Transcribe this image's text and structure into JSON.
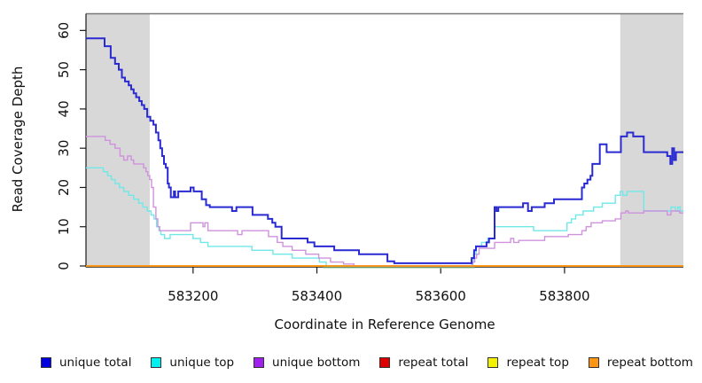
{
  "chart_data": {
    "type": "line",
    "line_style": "step",
    "title": "",
    "xlabel": "Coordinate in Reference Genome",
    "ylabel": "Read Coverage Depth",
    "xlim": [
      583027,
      583992
    ],
    "ylim": [
      0,
      64
    ],
    "x_tick_values": [
      583200,
      583400,
      583600,
      583800
    ],
    "x_tick_labels": [
      "583200",
      "583400",
      "583600",
      "583800"
    ],
    "y_tick_values": [
      0,
      10,
      20,
      30,
      40,
      50,
      60
    ],
    "y_tick_labels": [
      "0",
      "10",
      "20",
      "30",
      "40",
      "50",
      "60"
    ],
    "grid": false,
    "legend_position": "bottom",
    "background_color": "#ffffff",
    "shaded_region_color": "#d8d8d8",
    "shaded_regions": [
      {
        "x0": 583027,
        "x1": 583130
      },
      {
        "x0": 583890,
        "x1": 583992
      }
    ],
    "overlap_artifact": {
      "x0": 583410,
      "x1": 583655,
      "depth": 0,
      "color": "#9cd69c"
    },
    "series": [
      {
        "label": "unique total",
        "line_color": "#2a2ad2",
        "legend_color": "#0000e0",
        "line_width": 2,
        "points": [
          [
            583027,
            58
          ],
          [
            583057,
            56
          ],
          [
            583067,
            53
          ],
          [
            583074,
            51.5
          ],
          [
            583080,
            50
          ],
          [
            583085,
            48
          ],
          [
            583090,
            47
          ],
          [
            583096,
            46
          ],
          [
            583100,
            45
          ],
          [
            583104,
            44
          ],
          [
            583108,
            43
          ],
          [
            583113,
            42
          ],
          [
            583117,
            41
          ],
          [
            583121,
            40
          ],
          [
            583126,
            38
          ],
          [
            583131,
            37
          ],
          [
            583136,
            36
          ],
          [
            583140,
            34
          ],
          [
            583144,
            32
          ],
          [
            583147,
            30
          ],
          [
            583150,
            28
          ],
          [
            583153,
            26
          ],
          [
            583156,
            25
          ],
          [
            583159,
            21
          ],
          [
            583161,
            20
          ],
          [
            583164,
            17.5
          ],
          [
            583169,
            19
          ],
          [
            583171,
            17.5
          ],
          [
            583176,
            19
          ],
          [
            583196,
            20
          ],
          [
            583201,
            19
          ],
          [
            583214,
            17
          ],
          [
            583221,
            15.5
          ],
          [
            583227,
            15
          ],
          [
            583263,
            14
          ],
          [
            583270,
            15
          ],
          [
            583296,
            13
          ],
          [
            583321,
            12
          ],
          [
            583328,
            11
          ],
          [
            583333,
            10
          ],
          [
            583343,
            7
          ],
          [
            583385,
            6
          ],
          [
            583396,
            5
          ],
          [
            583428,
            4
          ],
          [
            583468,
            3
          ],
          [
            583514,
            1.2
          ],
          [
            583525,
            0.7
          ],
          [
            583650,
            2
          ],
          [
            583654,
            4
          ],
          [
            583657,
            5
          ],
          [
            583674,
            6
          ],
          [
            583678,
            7
          ],
          [
            583687,
            15
          ],
          [
            583690,
            14
          ],
          [
            583693,
            15
          ],
          [
            583733,
            16
          ],
          [
            583741,
            14
          ],
          [
            583747,
            15
          ],
          [
            583768,
            16
          ],
          [
            583783,
            17
          ],
          [
            583828,
            20
          ],
          [
            583832,
            21
          ],
          [
            583837,
            22
          ],
          [
            583842,
            23
          ],
          [
            583845,
            26
          ],
          [
            583857,
            31
          ],
          [
            583868,
            29
          ],
          [
            583891,
            33
          ],
          [
            583901,
            34
          ],
          [
            583911,
            33
          ],
          [
            583928,
            29
          ],
          [
            583966,
            28
          ],
          [
            583971,
            26
          ],
          [
            583974,
            30
          ],
          [
            583977,
            27
          ],
          [
            583980,
            29
          ]
        ]
      },
      {
        "label": "unique top",
        "line_color": "#70e8e8",
        "legend_color": "#00f0f0",
        "line_width": 1.4,
        "points": [
          [
            583027,
            25
          ],
          [
            583055,
            24
          ],
          [
            583062,
            23
          ],
          [
            583068,
            22
          ],
          [
            583074,
            21
          ],
          [
            583081,
            20
          ],
          [
            583088,
            19
          ],
          [
            583096,
            18
          ],
          [
            583104,
            17
          ],
          [
            583112,
            16
          ],
          [
            583119,
            15
          ],
          [
            583126,
            14
          ],
          [
            583132,
            13
          ],
          [
            583137,
            12
          ],
          [
            583141,
            10
          ],
          [
            583145,
            9
          ],
          [
            583148,
            8
          ],
          [
            583154,
            7
          ],
          [
            583163,
            8
          ],
          [
            583200,
            7
          ],
          [
            583212,
            6
          ],
          [
            583224,
            5
          ],
          [
            583295,
            4
          ],
          [
            583329,
            3
          ],
          [
            583360,
            2
          ],
          [
            583404,
            1
          ],
          [
            583415,
            0
          ],
          [
            583650,
            1
          ],
          [
            583653,
            3
          ],
          [
            583657,
            5
          ],
          [
            583666,
            6
          ],
          [
            583676,
            7
          ],
          [
            583687,
            10
          ],
          [
            583750,
            9
          ],
          [
            583804,
            11
          ],
          [
            583811,
            12
          ],
          [
            583818,
            13
          ],
          [
            583830,
            14
          ],
          [
            583847,
            15
          ],
          [
            583861,
            16
          ],
          [
            583882,
            18
          ],
          [
            583890,
            19
          ],
          [
            583894,
            18
          ],
          [
            583901,
            19
          ],
          [
            583928,
            14
          ],
          [
            583972,
            15
          ],
          [
            583979,
            14
          ],
          [
            583983,
            15
          ],
          [
            583987,
            14
          ]
        ]
      },
      {
        "label": "unique bottom",
        "line_color": "#cf92dd",
        "legend_color": "#a020f0",
        "line_width": 1.4,
        "points": [
          [
            583027,
            33
          ],
          [
            583058,
            32
          ],
          [
            583066,
            31
          ],
          [
            583074,
            30
          ],
          [
            583082,
            28
          ],
          [
            583088,
            27
          ],
          [
            583094,
            28
          ],
          [
            583100,
            27
          ],
          [
            583104,
            26
          ],
          [
            583120,
            25
          ],
          [
            583124,
            24
          ],
          [
            583127,
            23
          ],
          [
            583130,
            22
          ],
          [
            583133,
            20
          ],
          [
            583136,
            15
          ],
          [
            583140,
            12
          ],
          [
            583143,
            10
          ],
          [
            583146,
            9
          ],
          [
            583196,
            11
          ],
          [
            583216,
            10
          ],
          [
            583219,
            11
          ],
          [
            583224,
            9
          ],
          [
            583272,
            8
          ],
          [
            583279,
            9
          ],
          [
            583322,
            7.5
          ],
          [
            583336,
            6
          ],
          [
            583345,
            5
          ],
          [
            583360,
            4
          ],
          [
            583382,
            3
          ],
          [
            583403,
            2
          ],
          [
            583422,
            1
          ],
          [
            583443,
            0.5
          ],
          [
            583460,
            0
          ],
          [
            583652,
            1
          ],
          [
            583655,
            2
          ],
          [
            583658,
            3
          ],
          [
            583662,
            4.5
          ],
          [
            583687,
            6
          ],
          [
            583713,
            7
          ],
          [
            583718,
            6
          ],
          [
            583726,
            6.5
          ],
          [
            583768,
            7.5
          ],
          [
            583806,
            8
          ],
          [
            583828,
            9
          ],
          [
            583835,
            10
          ],
          [
            583843,
            11
          ],
          [
            583861,
            11.5
          ],
          [
            583882,
            12
          ],
          [
            583891,
            13.5
          ],
          [
            583899,
            14
          ],
          [
            583903,
            13.5
          ],
          [
            583928,
            14
          ],
          [
            583966,
            13
          ],
          [
            583972,
            14
          ],
          [
            583986,
            13.5
          ]
        ]
      },
      {
        "label": "repeat total",
        "line_color": "#dd0000",
        "legend_color": "#dd0000",
        "line_width": 1.4,
        "points": [
          [
            583027,
            0
          ]
        ]
      },
      {
        "label": "repeat top",
        "line_color": "#f2f200",
        "legend_color": "#f2f200",
        "line_width": 1.4,
        "points": [
          [
            583027,
            0
          ]
        ]
      },
      {
        "label": "repeat bottom",
        "line_color": "#ff9514",
        "legend_color": "#ff9514",
        "line_width": 1.8,
        "points": [
          [
            583027,
            0
          ]
        ]
      }
    ]
  }
}
